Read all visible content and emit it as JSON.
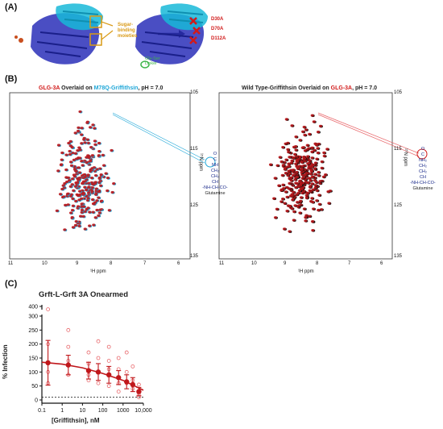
{
  "panelA": {
    "label": "(A)",
    "sugar_label_line1": "Sugar-",
    "sugar_label_line2": "binding",
    "sugar_label_line3": "moieties",
    "mutations": [
      "D30A",
      "D70A",
      "D112A"
    ],
    "linker_line1": "Gly-Ser",
    "linker_line2": "Linker"
  },
  "panelB": {
    "label": "(B)",
    "left": {
      "title_part1": "GLG-3A",
      "title_part2": " Overlaid on ",
      "title_part3": "M78Q-Griffithsin",
      "title_part4": ", pH = 7.0",
      "xlabel": "¹H ppm",
      "ylabel": "¹⁵N ppm",
      "xticks": [
        "11",
        "10",
        "9",
        "8",
        "7",
        "6"
      ],
      "yticks": [
        "105",
        "115",
        "125",
        "135"
      ],
      "structure": [
        "O",
        "C",
        "NH",
        "CH₂",
        "CH₂",
        "CH",
        "-NH-CH-CO-",
        "Glutamine"
      ]
    },
    "right": {
      "title_part1": "Wild Type-Griffithsin Overlaid on ",
      "title_part2": "GLG-3A",
      "title_part3": ", pH = 7.0",
      "xlabel": "¹H ppm",
      "ylabel": "¹⁵N ppm",
      "xticks": [
        "11",
        "10",
        "9",
        "8",
        "7",
        "6"
      ],
      "yticks": [
        "105",
        "115",
        "125",
        "135"
      ],
      "structure": [
        "O",
        "C",
        "NH₂",
        "CH₂",
        "CH₂",
        "CH",
        "-NH-CH-CO-",
        "Glutamine"
      ]
    }
  },
  "panelC": {
    "label": "(C)",
    "title": "Grft-L-Grft 3A Onearmed",
    "ylabel": "% Infection",
    "xlabel": "[Griffithsin], nM",
    "colors": {
      "primary": "#c0171b",
      "light": "#e8666a"
    }
  },
  "chart_data": {
    "type": "scatter",
    "title": "Grft-L-Grft 3A Onearmed",
    "xlabel": "[Griffithsin], nM",
    "ylabel": "% Infection",
    "x_scale": "log",
    "xlim": [
      0.1,
      10000
    ],
    "xticks": [
      "0.1",
      "1",
      "10",
      "100",
      "1000",
      "10,000"
    ],
    "y_axis_broken": true,
    "yticks": [
      "0",
      "50",
      "100",
      "150",
      "200",
      "250",
      "300",
      "400"
    ],
    "means": [
      {
        "x": 0.2,
        "y": 133,
        "err": 80
      },
      {
        "x": 2,
        "y": 125,
        "err": 35
      },
      {
        "x": 20,
        "y": 105,
        "err": 30
      },
      {
        "x": 60,
        "y": 100,
        "err": 30
      },
      {
        "x": 200,
        "y": 90,
        "err": 30
      },
      {
        "x": 600,
        "y": 80,
        "err": 25
      },
      {
        "x": 1500,
        "y": 65,
        "err": 25
      },
      {
        "x": 3000,
        "y": 55,
        "err": 25
      },
      {
        "x": 6000,
        "y": 30,
        "err": 15
      }
    ],
    "replicates": [
      {
        "x": 0.2,
        "y": 330
      },
      {
        "x": 0.2,
        "y": 200
      },
      {
        "x": 0.2,
        "y": 100
      },
      {
        "x": 0.2,
        "y": 60
      },
      {
        "x": 2,
        "y": 250
      },
      {
        "x": 2,
        "y": 190
      },
      {
        "x": 2,
        "y": 140
      },
      {
        "x": 2,
        "y": 90
      },
      {
        "x": 20,
        "y": 170
      },
      {
        "x": 20,
        "y": 130
      },
      {
        "x": 20,
        "y": 90
      },
      {
        "x": 20,
        "y": 70
      },
      {
        "x": 60,
        "y": 210
      },
      {
        "x": 60,
        "y": 150
      },
      {
        "x": 60,
        "y": 100
      },
      {
        "x": 60,
        "y": 60
      },
      {
        "x": 200,
        "y": 190
      },
      {
        "x": 200,
        "y": 140
      },
      {
        "x": 200,
        "y": 110
      },
      {
        "x": 200,
        "y": 50
      },
      {
        "x": 600,
        "y": 150
      },
      {
        "x": 600,
        "y": 110
      },
      {
        "x": 600,
        "y": 60
      },
      {
        "x": 600,
        "y": 30
      },
      {
        "x": 1500,
        "y": 170
      },
      {
        "x": 1500,
        "y": 100
      },
      {
        "x": 1500,
        "y": 60
      },
      {
        "x": 3000,
        "y": 120
      },
      {
        "x": 3000,
        "y": 70
      },
      {
        "x": 3000,
        "y": 40
      },
      {
        "x": 6000,
        "y": 55
      },
      {
        "x": 6000,
        "y": 20
      },
      {
        "x": 6000,
        "y": 10
      }
    ],
    "fit_curve": [
      {
        "x": 0.1,
        "y": 135
      },
      {
        "x": 1,
        "y": 128
      },
      {
        "x": 10,
        "y": 115
      },
      {
        "x": 100,
        "y": 95
      },
      {
        "x": 1000,
        "y": 70
      },
      {
        "x": 10000,
        "y": 35
      }
    ],
    "baseline": 10
  }
}
